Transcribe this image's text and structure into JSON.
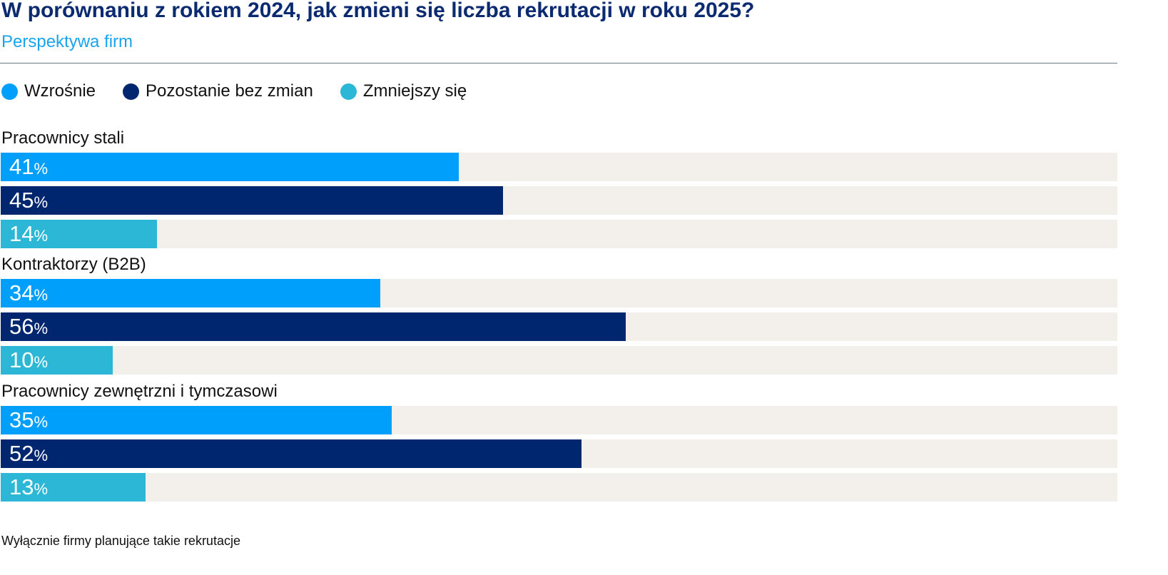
{
  "chart_data": {
    "type": "bar",
    "orientation": "horizontal",
    "title": "W porównaniu z rokiem 2024, jak zmieni się liczba rekrutacji w roku 2025?",
    "subtitle": "Perspektywa firm",
    "legend": [
      "Wzrośnie",
      "Pozostanie bez zmian",
      "Zmniejszy się"
    ],
    "legend_position": "top-left",
    "colors": [
      "#009ffc",
      "#00266f",
      "#2db7d6"
    ],
    "xlim": [
      0,
      100
    ],
    "unit": "%",
    "categories": [
      "Pracownicy stali",
      "Kontraktorzy (B2B)",
      "Pracownicy zewnętrzni i tymczasowi"
    ],
    "series": [
      {
        "name": "Wzrośnie",
        "values": [
          41,
          34,
          35
        ]
      },
      {
        "name": "Pozostanie bez zmian",
        "values": [
          45,
          56,
          52
        ]
      },
      {
        "name": "Zmniejszy się",
        "values": [
          14,
          10,
          13
        ]
      }
    ],
    "grid": false,
    "note": "Wyłącznie firmy planujące takie rekrutacje"
  }
}
